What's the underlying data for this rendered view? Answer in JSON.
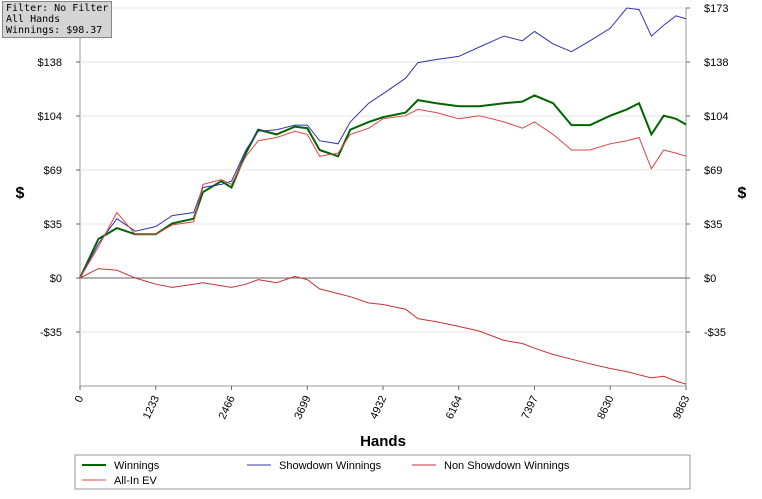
{
  "chart_data": {
    "type": "line",
    "info": [
      "Filter: No Filter",
      "All Hands",
      "Winnings: $98.37"
    ],
    "xlabel": "Hands",
    "ylabel": "$",
    "y2label": "$",
    "xlim": [
      0,
      9863
    ],
    "xticks": [
      0,
      1233,
      2466,
      3699,
      4932,
      6164,
      7397,
      8630,
      9863
    ],
    "ylim": [
      -69.2,
      173
    ],
    "yticks": [
      {
        "value": -34.6,
        "label": "-$35"
      },
      {
        "value": 0,
        "label": "$0"
      },
      {
        "value": 34.6,
        "label": "$35"
      },
      {
        "value": 69.2,
        "label": "$69"
      },
      {
        "value": 103.8,
        "label": "$104"
      },
      {
        "value": 138.4,
        "label": "$138"
      },
      {
        "value": 173,
        "label": "$173"
      }
    ],
    "x": [
      0,
      300,
      600,
      900,
      1233,
      1500,
      1850,
      2000,
      2300,
      2466,
      2700,
      2900,
      3200,
      3500,
      3699,
      3900,
      4200,
      4400,
      4700,
      4932,
      5300,
      5500,
      5800,
      6164,
      6500,
      6900,
      7200,
      7397,
      7700,
      8000,
      8300,
      8630,
      8900,
      9100,
      9300,
      9500,
      9700,
      9863
    ],
    "series": [
      {
        "name": "Winnings",
        "color": "#006400",
        "width": 2,
        "values": [
          0,
          25,
          32,
          28,
          28,
          35,
          38,
          55,
          62,
          58,
          80,
          95,
          92,
          97,
          96,
          82,
          78,
          95,
          100,
          103,
          106,
          114,
          112,
          110,
          110,
          112,
          113,
          117,
          112,
          98,
          98,
          104,
          108,
          112,
          92,
          104,
          102,
          98.37
        ]
      },
      {
        "name": "Showdown Winnings",
        "color": "#3333aa",
        "width": 1,
        "values": [
          0,
          22,
          38,
          30,
          33,
          40,
          42,
          58,
          60,
          62,
          82,
          94,
          95,
          98,
          98,
          88,
          86,
          100,
          112,
          118,
          128,
          138,
          140,
          142,
          148,
          155,
          152,
          158,
          150,
          145,
          152,
          160,
          173,
          172,
          155,
          162,
          168,
          166
        ]
      },
      {
        "name": "Non Showdown Winnings",
        "color": "#c83232",
        "width": 1,
        "values": [
          0,
          6,
          5,
          0,
          -4,
          -6,
          -4,
          -3,
          -5,
          -6,
          -4,
          -1,
          -3,
          1,
          -1,
          -7,
          -10,
          -12,
          -16,
          -17,
          -20,
          -26,
          -28,
          -31,
          -34,
          -40,
          -42,
          -45,
          -49,
          -52,
          -55,
          -58,
          -60,
          -62,
          -64,
          -63,
          -66,
          -68
        ]
      },
      {
        "name": "All-In EV",
        "color": "#dd4444",
        "width": 1,
        "values": [
          0,
          20,
          42,
          28,
          28,
          34,
          36,
          60,
          63,
          60,
          78,
          88,
          90,
          94,
          92,
          78,
          80,
          92,
          96,
          102,
          104,
          108,
          106,
          102,
          104,
          100,
          96,
          100,
          92,
          82,
          82,
          86,
          88,
          90,
          70,
          82,
          80,
          78
        ]
      }
    ]
  }
}
